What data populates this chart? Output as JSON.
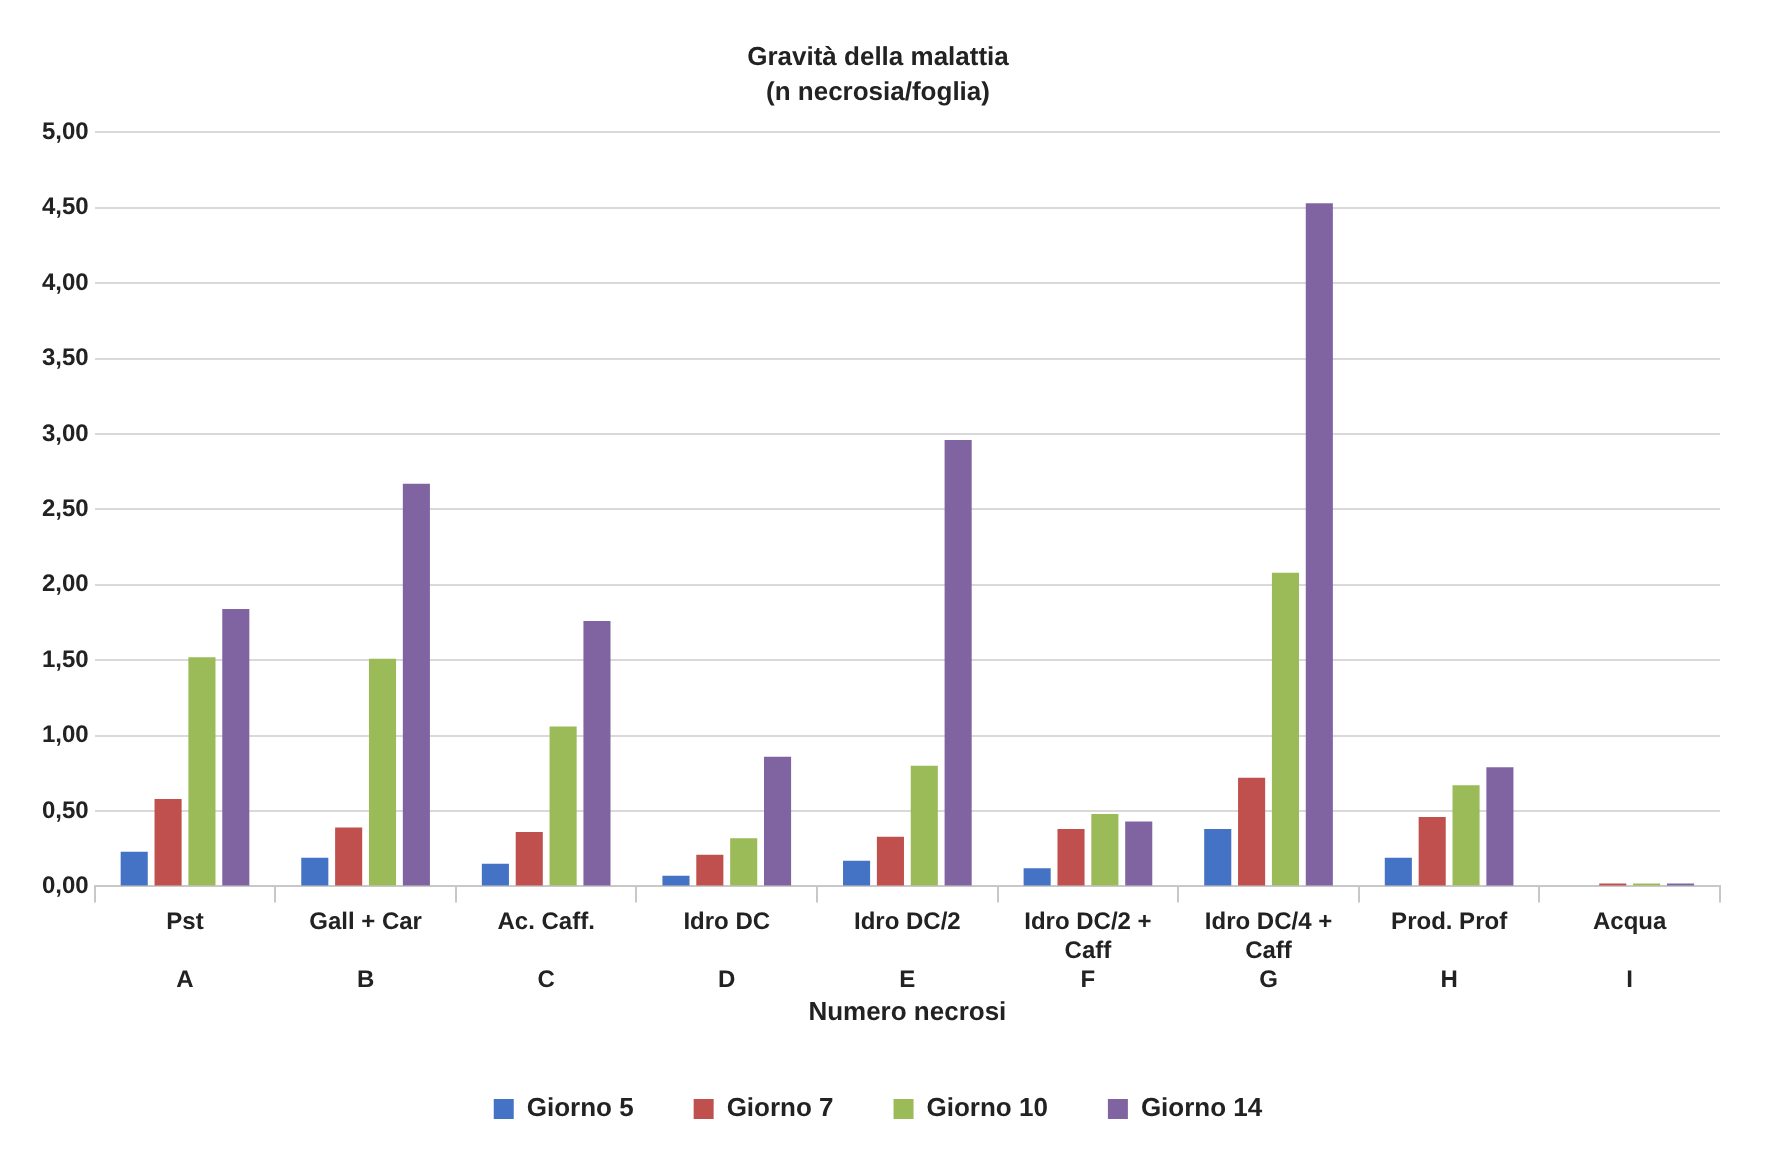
{
  "chart_data": {
    "type": "bar",
    "title": "Gravità della malattia",
    "subtitle": "(n necrosia/foglia)",
    "xlabel": "Numero necrosi",
    "categories": [
      "Pst\nA",
      "Gall + Car\nB",
      "Ac. Caff.\nC",
      "Idro DC\nD",
      "Idro DC/2\nE",
      "Idro DC/2 + Caff\nF",
      "Idro DC/4 + Caff\nG",
      "Prod. Prof\nH",
      "Acqua\nI"
    ],
    "series": [
      {
        "name": "Giorno 5",
        "color": "#4472c4",
        "values": [
          0.23,
          0.19,
          0.15,
          0.07,
          0.17,
          0.12,
          0.38,
          0.19,
          null
        ]
      },
      {
        "name": "Giorno 7",
        "color": "#c0504d",
        "values": [
          0.58,
          0.39,
          0.36,
          0.21,
          0.33,
          0.38,
          0.72,
          0.46,
          0.02
        ]
      },
      {
        "name": "Giorno 10",
        "color": "#9bbb59",
        "values": [
          1.52,
          1.51,
          1.06,
          0.32,
          0.8,
          0.48,
          2.08,
          0.67,
          0.02
        ]
      },
      {
        "name": "Giorno 14",
        "color": "#8064a2",
        "values": [
          1.84,
          2.67,
          1.76,
          0.86,
          2.96,
          0.43,
          4.53,
          0.79,
          0.02
        ]
      }
    ],
    "ylim": [
      0,
      5
    ],
    "yticks": [
      {
        "value": 0,
        "label": "0,00"
      },
      {
        "value": 0.5,
        "label": "0,50"
      },
      {
        "value": 1,
        "label": "1,00"
      },
      {
        "value": 1.5,
        "label": "1,50"
      },
      {
        "value": 2,
        "label": "2,00"
      },
      {
        "value": 2.5,
        "label": "2,50"
      },
      {
        "value": 3,
        "label": "3,00"
      },
      {
        "value": 3.5,
        "label": "3,50"
      },
      {
        "value": 4,
        "label": "4,00"
      },
      {
        "value": 4.5,
        "label": "4,50"
      },
      {
        "value": 5,
        "label": "5,00"
      }
    ],
    "grid": "y",
    "legend": "bottom"
  }
}
